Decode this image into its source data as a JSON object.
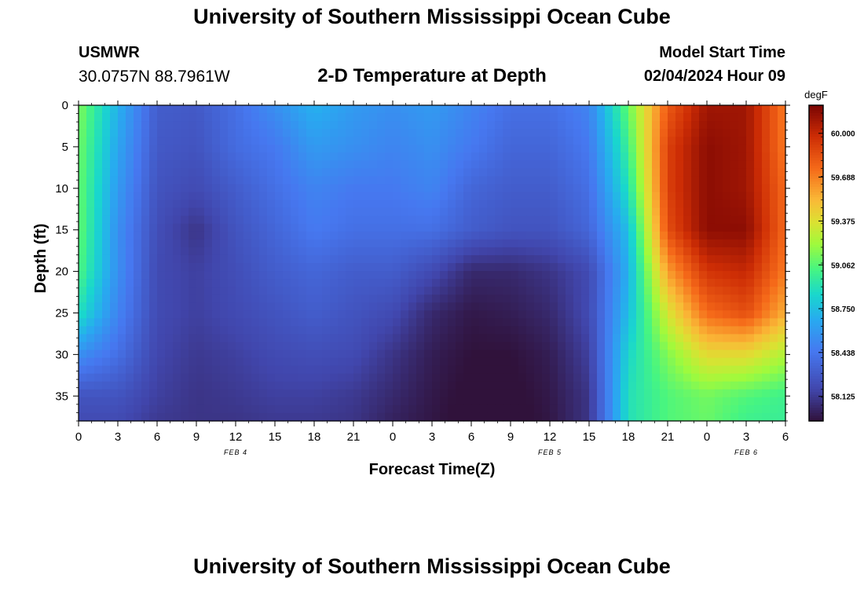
{
  "header": {
    "title": "University of Southern Mississippi Ocean Cube",
    "station": "USMWR",
    "coords": "30.0757N  88.7961W",
    "subtitle": "2-D Temperature at Depth",
    "model_start_label": "Model Start Time",
    "model_start_value": "02/04/2024 Hour 09"
  },
  "footer": {
    "title": "University of Southern Mississippi Ocean Cube"
  },
  "chart_data": {
    "type": "heatmap",
    "title": "2-D Temperature at Depth",
    "xlabel": "Forecast Time(Z)",
    "ylabel": "Depth (ft)",
    "x_unit": "hours since 02/04/2024 00Z",
    "xlim": [
      0,
      54
    ],
    "ylim": [
      0,
      38
    ],
    "y_inverted": true,
    "x_ticks": [
      {
        "x": 0,
        "label": "0"
      },
      {
        "x": 3,
        "label": "3"
      },
      {
        "x": 6,
        "label": "6"
      },
      {
        "x": 9,
        "label": "9"
      },
      {
        "x": 12,
        "label": "12"
      },
      {
        "x": 15,
        "label": "15"
      },
      {
        "x": 18,
        "label": "18"
      },
      {
        "x": 21,
        "label": "21"
      },
      {
        "x": 24,
        "label": "0"
      },
      {
        "x": 27,
        "label": "3"
      },
      {
        "x": 30,
        "label": "6"
      },
      {
        "x": 33,
        "label": "9"
      },
      {
        "x": 36,
        "label": "12"
      },
      {
        "x": 39,
        "label": "15"
      },
      {
        "x": 42,
        "label": "18"
      },
      {
        "x": 45,
        "label": "21"
      },
      {
        "x": 48,
        "label": "0"
      },
      {
        "x": 51,
        "label": "3"
      },
      {
        "x": 54,
        "label": "6"
      }
    ],
    "date_labels": [
      {
        "x": 12,
        "label": "FEB 4"
      },
      {
        "x": 36,
        "label": "FEB 5"
      },
      {
        "x": 51,
        "label": "FEB 6"
      }
    ],
    "y_ticks": [
      0,
      5,
      10,
      15,
      20,
      25,
      30,
      35
    ],
    "colorbar": {
      "unit": "degF",
      "min": 57.95,
      "max": 60.2,
      "labels": [
        "60.000",
        "59.688",
        "59.375",
        "59.062",
        "58.750",
        "58.438",
        "58.125"
      ],
      "label_values": [
        60.0,
        59.688,
        59.375,
        59.062,
        58.75,
        58.438,
        58.125
      ]
    },
    "x": [
      0,
      3,
      6,
      9,
      12,
      15,
      18,
      21,
      24,
      27,
      30,
      33,
      36,
      39,
      42,
      45,
      48,
      51,
      54
    ],
    "depths": [
      0,
      5,
      10,
      15,
      20,
      25,
      30,
      35,
      38
    ],
    "values": [
      [
        59.15,
        58.7,
        58.3,
        58.28,
        58.4,
        58.55,
        58.7,
        58.6,
        58.55,
        58.6,
        58.5,
        58.4,
        58.4,
        58.5,
        59.1,
        59.8,
        60.1,
        60.1,
        59.7
      ],
      [
        59.12,
        58.65,
        58.28,
        58.25,
        58.38,
        58.45,
        58.6,
        58.55,
        58.5,
        58.55,
        58.45,
        58.35,
        58.35,
        58.45,
        59.0,
        59.9,
        60.15,
        60.1,
        59.7
      ],
      [
        59.1,
        58.6,
        58.25,
        58.2,
        58.3,
        58.4,
        58.5,
        58.45,
        58.45,
        58.5,
        58.35,
        58.3,
        58.3,
        58.4,
        58.9,
        59.9,
        60.15,
        60.1,
        59.75
      ],
      [
        59.1,
        58.55,
        58.22,
        58.1,
        58.25,
        58.35,
        58.45,
        58.4,
        58.4,
        58.4,
        58.3,
        58.25,
        58.25,
        58.35,
        58.75,
        59.85,
        60.15,
        60.15,
        59.75
      ],
      [
        59.05,
        58.55,
        58.2,
        58.15,
        58.22,
        58.3,
        58.35,
        58.3,
        58.3,
        58.2,
        58.05,
        58.05,
        58.1,
        58.2,
        58.7,
        59.6,
        59.95,
        60.0,
        59.7
      ],
      [
        58.9,
        58.5,
        58.2,
        58.15,
        58.2,
        58.25,
        58.3,
        58.25,
        58.2,
        58.05,
        57.98,
        58.0,
        58.05,
        58.2,
        58.75,
        59.35,
        59.75,
        59.85,
        59.55
      ],
      [
        58.55,
        58.4,
        58.18,
        58.12,
        58.15,
        58.2,
        58.22,
        58.2,
        58.1,
        58.0,
        57.95,
        57.95,
        58.0,
        58.15,
        58.85,
        59.15,
        59.4,
        59.4,
        59.25
      ],
      [
        58.25,
        58.25,
        58.15,
        58.1,
        58.12,
        58.15,
        58.15,
        58.12,
        58.05,
        57.98,
        57.93,
        57.93,
        57.98,
        58.1,
        58.9,
        59.05,
        59.12,
        59.05,
        59.0
      ],
      [
        58.2,
        58.2,
        58.12,
        58.1,
        58.1,
        58.12,
        58.12,
        58.1,
        58.02,
        57.97,
        57.92,
        57.92,
        57.97,
        58.1,
        58.9,
        59.05,
        59.1,
        59.0,
        58.98
      ]
    ]
  }
}
